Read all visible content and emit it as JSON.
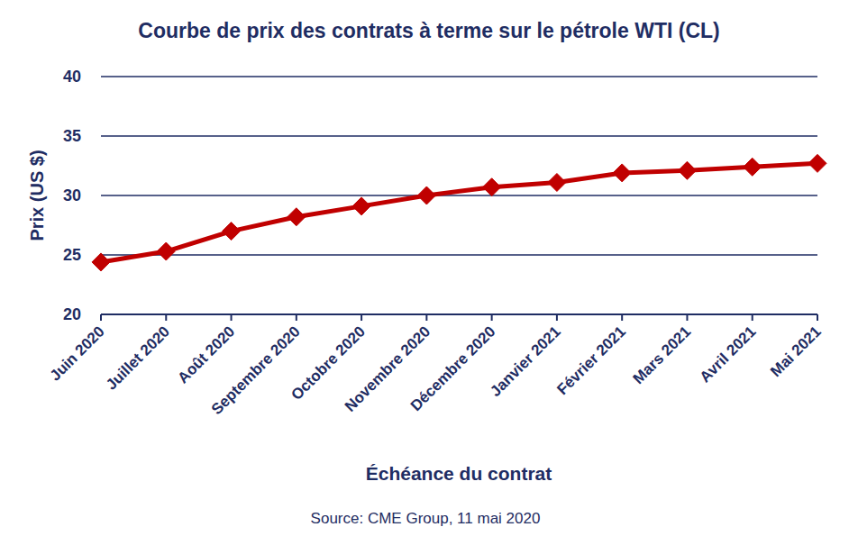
{
  "chart_data": {
    "type": "line",
    "title": "Courbe de prix des contrats à terme sur le pétrole WTI (CL)",
    "x_label": "Échéance du contrat",
    "y_label": "Prix (US $)",
    "source": "Source: CME Group, 11 mai 2020",
    "categories": [
      "Juin 2020",
      "Juillet 2020",
      "Août 2020",
      "Septembre 2020",
      "Octobre 2020",
      "Novembre 2020",
      "Décembre 2020",
      "Janvier 2021",
      "Février 2021",
      "Mars 2021",
      "Avril 2021",
      "Mai 2021"
    ],
    "values": [
      24.4,
      25.3,
      27.0,
      28.2,
      29.1,
      30.0,
      30.7,
      31.1,
      31.9,
      32.1,
      32.4,
      32.7
    ],
    "color": "#c00000",
    "marker": "diamond",
    "ylim": [
      20,
      40
    ],
    "yticks": [
      20,
      25,
      30,
      35,
      40
    ],
    "grid": true
  }
}
